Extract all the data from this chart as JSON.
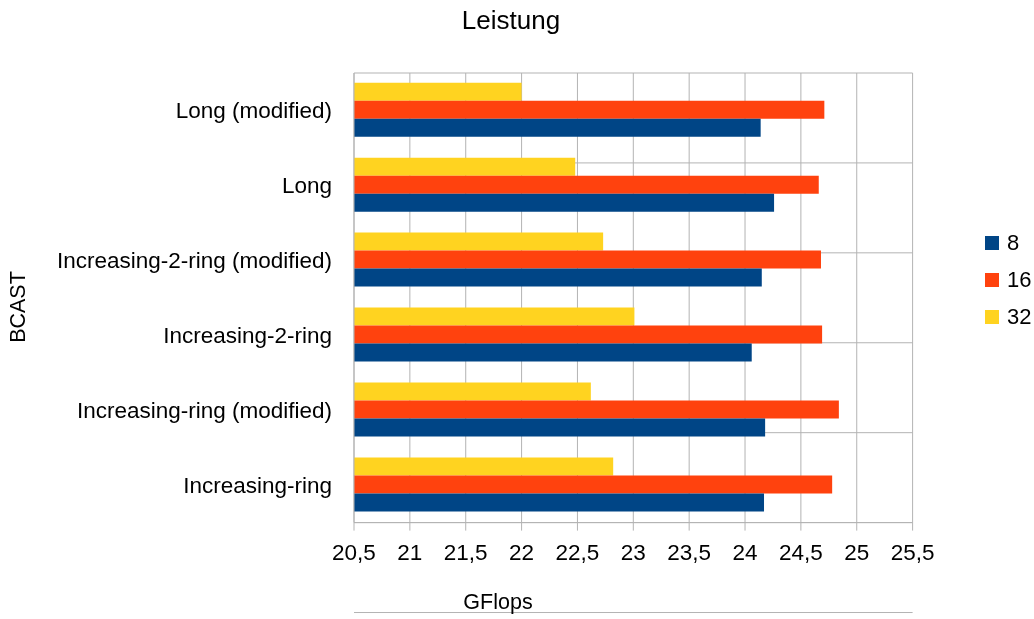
{
  "chart_data": {
    "type": "bar",
    "orientation": "horizontal",
    "title": "Leistung",
    "xlabel": "GFlops",
    "ylabel": "BCAST",
    "categories": [
      "Long (modified)",
      "Long",
      "Increasing-2-ring (modified)",
      "Increasing-2-ring",
      "Increasing-ring (modified)",
      "Increasing-ring"
    ],
    "series": [
      {
        "name": "8",
        "color": "#004586",
        "values": [
          24.14,
          24.26,
          24.15,
          24.06,
          24.18,
          24.17
        ]
      },
      {
        "name": "16",
        "color": "#ff420e",
        "values": [
          24.71,
          24.66,
          24.68,
          24.69,
          24.84,
          24.78
        ]
      },
      {
        "name": "32",
        "color": "#ffd320",
        "values": [
          22.0,
          22.48,
          22.73,
          23.01,
          22.62,
          22.82
        ]
      }
    ],
    "xlim": [
      20.5,
      25.5
    ],
    "xticks": [
      {
        "value": 20.5,
        "label": "20,5"
      },
      21,
      {
        "value": 21.5,
        "label": "21,5"
      },
      22,
      {
        "value": 22.5,
        "label": "22,5"
      },
      23,
      {
        "value": 23.5,
        "label": "23,5"
      },
      24,
      {
        "value": 24.5,
        "label": "24,5"
      },
      25,
      {
        "value": 25.5,
        "label": "25,5"
      }
    ],
    "grid": true,
    "legend": "right"
  }
}
